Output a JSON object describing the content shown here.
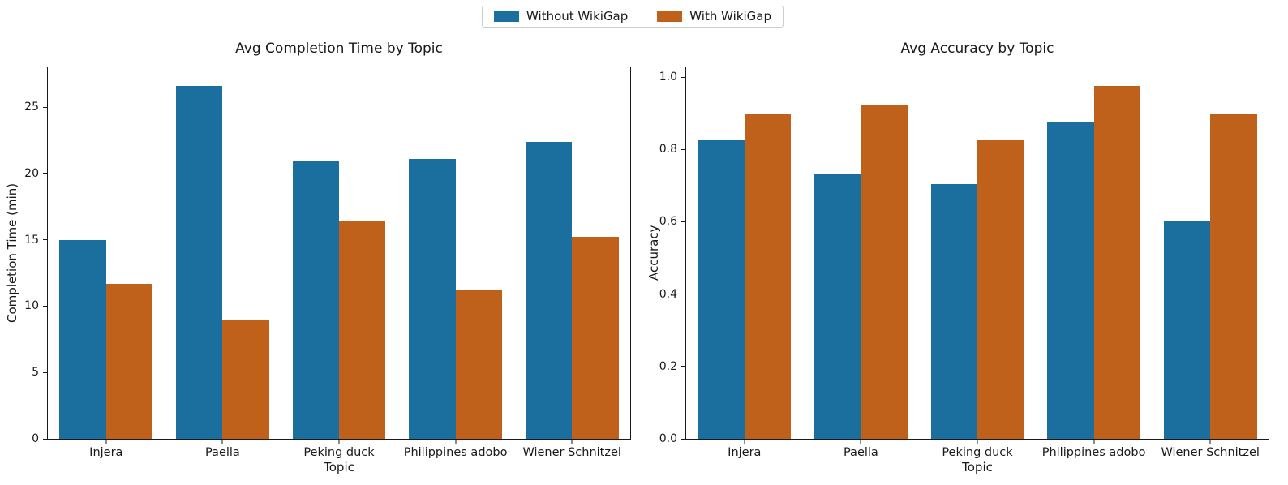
{
  "legend": {
    "position": "top-center",
    "items": [
      {
        "label": "Without WikiGap",
        "color": "#1a6f9e"
      },
      {
        "label": "With WikiGap",
        "color": "#c0611b"
      }
    ]
  },
  "chart_data": [
    {
      "type": "bar",
      "title": "Avg Completion Time by Topic",
      "xlabel": "Topic",
      "ylabel": "Completion Time (min)",
      "categories": [
        "Injera",
        "Paella",
        "Peking duck",
        "Philippines adobo",
        "Wiener Schnitzel"
      ],
      "series": [
        {
          "name": "Without WikiGap",
          "color": "#1a6f9e",
          "values": [
            15.0,
            26.6,
            21.0,
            21.1,
            22.4
          ]
        },
        {
          "name": "With WikiGap",
          "color": "#c0611b",
          "values": [
            11.7,
            8.9,
            16.4,
            11.2,
            15.2
          ]
        }
      ],
      "ylim": [
        0,
        28
      ],
      "yticks": [
        0,
        5,
        10,
        15,
        20,
        25
      ],
      "ytick_labels": [
        "0",
        "5",
        "10",
        "15",
        "20",
        "25"
      ],
      "grid": false,
      "legend_position": "figure upper center (shared)"
    },
    {
      "type": "bar",
      "title": "Avg Accuracy by Topic",
      "xlabel": "Topic",
      "ylabel": "Accuracy",
      "categories": [
        "Injera",
        "Paella",
        "Peking duck",
        "Philippines adobo",
        "Wiener Schnitzel"
      ],
      "series": [
        {
          "name": "Without WikiGap",
          "color": "#1a6f9e",
          "values": [
            0.825,
            0.73,
            0.705,
            0.875,
            0.6
          ]
        },
        {
          "name": "With WikiGap",
          "color": "#c0611b",
          "values": [
            0.9,
            0.925,
            0.825,
            0.975,
            0.9
          ]
        }
      ],
      "ylim": [
        0,
        1.027
      ],
      "yticks": [
        0.0,
        0.2,
        0.4,
        0.6,
        0.8,
        1.0
      ],
      "ytick_labels": [
        "0.0",
        "0.2",
        "0.4",
        "0.6",
        "0.8",
        "1.0"
      ],
      "grid": false,
      "legend_position": "figure upper center (shared)"
    }
  ]
}
